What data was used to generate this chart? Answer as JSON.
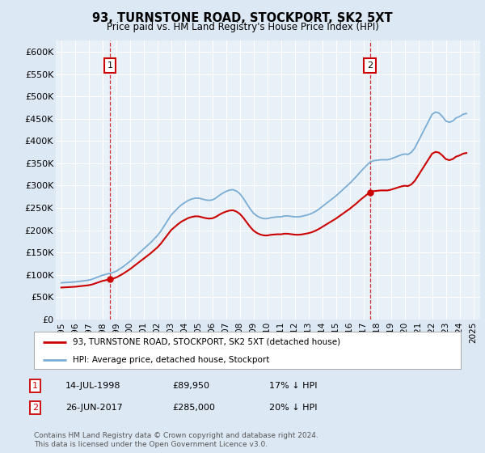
{
  "title": "93, TURNSTONE ROAD, STOCKPORT, SK2 5XT",
  "subtitle": "Price paid vs. HM Land Registry's House Price Index (HPI)",
  "ylabel_ticks": [
    "£0",
    "£50K",
    "£100K",
    "£150K",
    "£200K",
    "£250K",
    "£300K",
    "£350K",
    "£400K",
    "£450K",
    "£500K",
    "£550K",
    "£600K"
  ],
  "ylim": [
    0,
    625000
  ],
  "ytick_vals": [
    0,
    50000,
    100000,
    150000,
    200000,
    250000,
    300000,
    350000,
    400000,
    450000,
    500000,
    550000,
    600000
  ],
  "xlim_start": 1994.6,
  "xlim_end": 2025.5,
  "bg_color": "#dde8f5",
  "plot_bg": "#e8f0f8",
  "grid_color": "#ffffff",
  "line1_color": "#cc0000",
  "line2_color": "#7aadd4",
  "annotation1_date": "14-JUL-1998",
  "annotation1_price": 89950,
  "annotation1_pct": "17% ↓ HPI",
  "annotation2_date": "26-JUN-2017",
  "annotation2_price": 285000,
  "annotation2_pct": "20% ↓ HPI",
  "legend_line1": "93, TURNSTONE ROAD, STOCKPORT, SK2 5XT (detached house)",
  "legend_line2": "HPI: Average price, detached house, Stockport",
  "footer": "Contains HM Land Registry data © Crown copyright and database right 2024.\nThis data is licensed under the Open Government Licence v3.0.",
  "sale1_x": 1998.54,
  "sale1_y": 89950,
  "sale2_x": 2017.49,
  "sale2_y": 285000,
  "hpi_x": [
    1995.0,
    1995.25,
    1995.5,
    1995.75,
    1996.0,
    1996.25,
    1996.5,
    1996.75,
    1997.0,
    1997.25,
    1997.5,
    1997.75,
    1998.0,
    1998.25,
    1998.5,
    1998.75,
    1999.0,
    1999.25,
    1999.5,
    1999.75,
    2000.0,
    2000.25,
    2000.5,
    2000.75,
    2001.0,
    2001.25,
    2001.5,
    2001.75,
    2002.0,
    2002.25,
    2002.5,
    2002.75,
    2003.0,
    2003.25,
    2003.5,
    2003.75,
    2004.0,
    2004.25,
    2004.5,
    2004.75,
    2005.0,
    2005.25,
    2005.5,
    2005.75,
    2006.0,
    2006.25,
    2006.5,
    2006.75,
    2007.0,
    2007.25,
    2007.5,
    2007.75,
    2008.0,
    2008.25,
    2008.5,
    2008.75,
    2009.0,
    2009.25,
    2009.5,
    2009.75,
    2010.0,
    2010.25,
    2010.5,
    2010.75,
    2011.0,
    2011.25,
    2011.5,
    2011.75,
    2012.0,
    2012.25,
    2012.5,
    2012.75,
    2013.0,
    2013.25,
    2013.5,
    2013.75,
    2014.0,
    2014.25,
    2014.5,
    2014.75,
    2015.0,
    2015.25,
    2015.5,
    2015.75,
    2016.0,
    2016.25,
    2016.5,
    2016.75,
    2017.0,
    2017.25,
    2017.5,
    2017.75,
    2018.0,
    2018.25,
    2018.5,
    2018.75,
    2019.0,
    2019.25,
    2019.5,
    2019.75,
    2020.0,
    2020.25,
    2020.5,
    2020.75,
    2021.0,
    2021.25,
    2021.5,
    2021.75,
    2022.0,
    2022.25,
    2022.5,
    2022.75,
    2023.0,
    2023.25,
    2023.5,
    2023.75,
    2024.0,
    2024.25,
    2024.5
  ],
  "hpi_y": [
    82000,
    82500,
    83000,
    83500,
    84000,
    85000,
    86000,
    87000,
    88000,
    90000,
    93000,
    96000,
    99000,
    101000,
    103000,
    105000,
    108000,
    113000,
    118000,
    124000,
    130000,
    137000,
    144000,
    151000,
    158000,
    165000,
    172000,
    180000,
    188000,
    198000,
    210000,
    222000,
    234000,
    242000,
    250000,
    257000,
    262000,
    267000,
    270000,
    272000,
    272000,
    270000,
    268000,
    267000,
    268000,
    272000,
    278000,
    283000,
    287000,
    290000,
    291000,
    288000,
    282000,
    272000,
    260000,
    248000,
    238000,
    232000,
    228000,
    226000,
    226000,
    228000,
    229000,
    230000,
    230000,
    232000,
    232000,
    231000,
    230000,
    230000,
    231000,
    233000,
    235000,
    238000,
    242000,
    247000,
    253000,
    259000,
    265000,
    271000,
    277000,
    284000,
    291000,
    298000,
    305000,
    313000,
    321000,
    330000,
    338000,
    346000,
    353000,
    356000,
    357000,
    358000,
    358000,
    358000,
    360000,
    363000,
    366000,
    369000,
    371000,
    370000,
    375000,
    385000,
    400000,
    415000,
    430000,
    445000,
    460000,
    465000,
    463000,
    455000,
    445000,
    442000,
    445000,
    452000,
    455000,
    460000,
    462000
  ],
  "xtick_years": [
    1995,
    1996,
    1997,
    1998,
    1999,
    2000,
    2001,
    2002,
    2003,
    2004,
    2005,
    2006,
    2007,
    2008,
    2009,
    2010,
    2011,
    2012,
    2013,
    2014,
    2015,
    2016,
    2017,
    2018,
    2019,
    2020,
    2021,
    2022,
    2023,
    2024,
    2025
  ]
}
